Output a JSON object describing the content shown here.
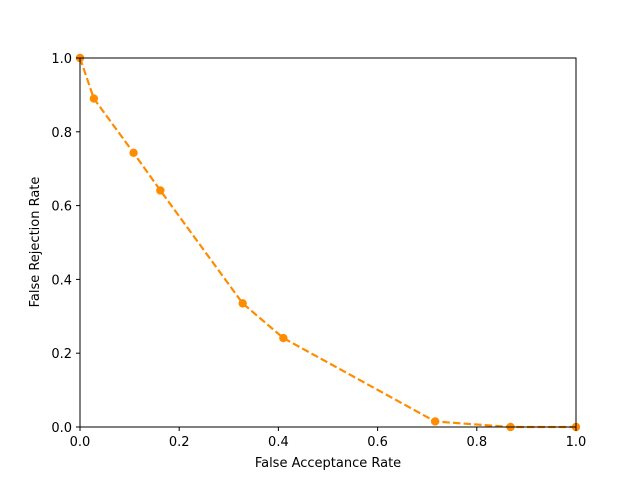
{
  "chart_data": {
    "type": "line",
    "title": "",
    "xlabel": "False Acceptance Rate",
    "ylabel": "False Rejection Rate",
    "xlim": [
      0,
      1
    ],
    "ylim": [
      0,
      1
    ],
    "x_ticks": [
      0.0,
      0.2,
      0.4,
      0.6,
      0.8,
      1.0
    ],
    "y_ticks": [
      0.0,
      0.2,
      0.4,
      0.6,
      0.8,
      1.0
    ],
    "x_tick_labels": [
      "0.0",
      "0.2",
      "0.4",
      "0.6",
      "0.8",
      "1.0"
    ],
    "y_tick_labels": [
      "0.0",
      "0.2",
      "0.4",
      "0.6",
      "0.8",
      "1.0"
    ],
    "grid": false,
    "legend": "none",
    "series": [
      {
        "color": "#ff8c00",
        "line_style": "dashed",
        "marker": "circle",
        "x": [
          0.0,
          0.028,
          0.108,
          0.162,
          0.328,
          0.41,
          0.716,
          0.868,
          1.0
        ],
        "y": [
          1.0,
          0.89,
          0.743,
          0.641,
          0.335,
          0.241,
          0.015,
          0.0,
          0.0
        ]
      }
    ]
  }
}
